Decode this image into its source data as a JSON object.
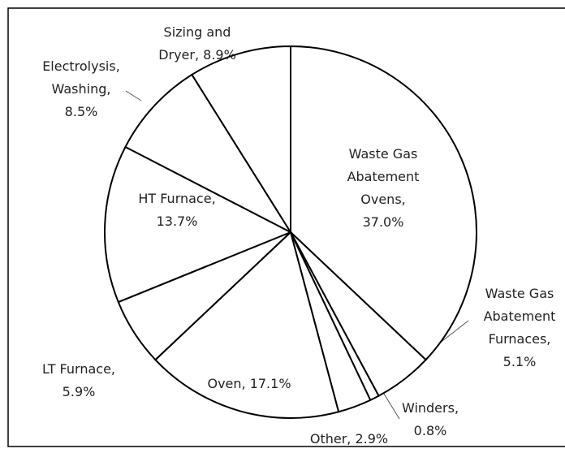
{
  "chart_data": {
    "type": "pie",
    "categories": [
      "Waste Gas Abatement Ovens,",
      "Waste Gas Abatement Furnaces,",
      "Winders,",
      "Other,",
      "Oven,",
      "LT Furnace,",
      "HT Furnace,",
      "Electrolysis, Washing,",
      "Sizing and Dryer,"
    ],
    "values": [
      37.0,
      5.1,
      0.8,
      2.9,
      17.1,
      5.9,
      13.7,
      8.5,
      8.9
    ],
    "value_labels": [
      "37.0%",
      "5.1%",
      "0.8%",
      "2.9%",
      "17.1%",
      "5.9%",
      "13.7%",
      "8.5%",
      "8.9%"
    ],
    "color": "#ffffff"
  }
}
